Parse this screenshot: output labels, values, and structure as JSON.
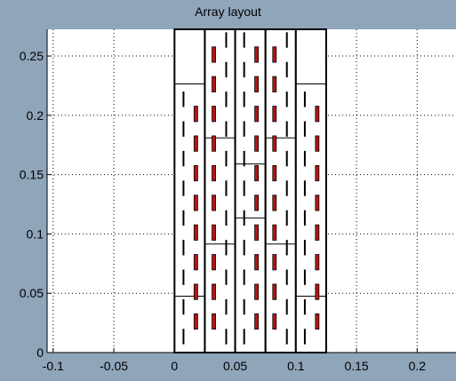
{
  "chart_data": {
    "type": "scatter",
    "title": "Array layout",
    "xlabel": "",
    "ylabel": "",
    "xlim": [
      -0.105,
      0.232
    ],
    "ylim": [
      0,
      0.2725
    ],
    "grid": true,
    "x_ticks": [
      -0.1,
      -0.05,
      0,
      0.05,
      0.1,
      0.15,
      0.2
    ],
    "x_tick_labels": [
      "-0.1",
      "-0.05",
      "0",
      "0.05",
      "0.1",
      "0.15",
      "0.2"
    ],
    "y_ticks": [
      0,
      0.05,
      0.1,
      0.15,
      0.2,
      0.25
    ],
    "y_tick_labels": [
      "0",
      "0.05",
      "0.1",
      "0.15",
      "0.2",
      "0.25"
    ],
    "columns": [
      {
        "x_start": 0,
        "x_end": 0.025,
        "dividers": [
          0.0475,
          0.2265
        ]
      },
      {
        "x_start": 0.025,
        "x_end": 0.05,
        "dividers": [
          0.0915,
          0.181
        ]
      },
      {
        "x_start": 0.05,
        "x_end": 0.075,
        "dividers": [
          0.1135,
          0.159
        ]
      },
      {
        "x_start": 0.075,
        "x_end": 0.1,
        "dividers": [
          0.0915,
          0.181
        ]
      },
      {
        "x_start": 0.1,
        "x_end": 0.125,
        "dividers": [
          0.0475,
          0.2265
        ]
      }
    ],
    "series": [
      {
        "color": "#000000",
        "elements": [
          [
            0.0074,
            0.0135
          ],
          [
            0.0074,
            0.0385
          ],
          [
            0.0074,
            0.0635
          ],
          [
            0.0074,
            0.0885
          ],
          [
            0.0074,
            0.1135
          ],
          [
            0.0074,
            0.1385
          ],
          [
            0.0074,
            0.1635
          ],
          [
            0.0074,
            0.1885
          ],
          [
            0.0074,
            0.2135
          ],
          [
            0.0426,
            0.0135
          ],
          [
            0.0426,
            0.0385
          ],
          [
            0.0426,
            0.0635
          ],
          [
            0.0426,
            0.0885
          ],
          [
            0.0426,
            0.1135
          ],
          [
            0.0426,
            0.1385
          ],
          [
            0.0426,
            0.1635
          ],
          [
            0.0426,
            0.1885
          ],
          [
            0.0426,
            0.2135
          ],
          [
            0.0426,
            0.2385
          ],
          [
            0.0426,
            0.2635
          ],
          [
            0.0574,
            0.0135
          ],
          [
            0.0574,
            0.0385
          ],
          [
            0.0574,
            0.0635
          ],
          [
            0.0574,
            0.0885
          ],
          [
            0.0574,
            0.1135
          ],
          [
            0.0574,
            0.1385
          ],
          [
            0.0574,
            0.1635
          ],
          [
            0.0574,
            0.1885
          ],
          [
            0.0574,
            0.2135
          ],
          [
            0.0574,
            0.2385
          ],
          [
            0.0574,
            0.2635
          ],
          [
            0.0926,
            0.0135
          ],
          [
            0.0926,
            0.0385
          ],
          [
            0.0926,
            0.0635
          ],
          [
            0.0926,
            0.0885
          ],
          [
            0.0926,
            0.1135
          ],
          [
            0.0926,
            0.1385
          ],
          [
            0.0926,
            0.1635
          ],
          [
            0.0926,
            0.1885
          ],
          [
            0.0926,
            0.2135
          ],
          [
            0.0926,
            0.2385
          ],
          [
            0.0926,
            0.2635
          ],
          [
            0.1074,
            0.0135
          ],
          [
            0.1074,
            0.0385
          ],
          [
            0.1074,
            0.0635
          ],
          [
            0.1074,
            0.0885
          ],
          [
            0.1074,
            0.1135
          ],
          [
            0.1074,
            0.1385
          ],
          [
            0.1074,
            0.1635
          ],
          [
            0.1074,
            0.1885
          ],
          [
            0.1074,
            0.2135
          ]
        ]
      },
      {
        "color": "#b81414",
        "elements": [
          [
            0.0176,
            0.0262
          ],
          [
            0.0176,
            0.0512
          ],
          [
            0.0176,
            0.0762
          ],
          [
            0.0176,
            0.1012
          ],
          [
            0.0176,
            0.1262
          ],
          [
            0.0176,
            0.1512
          ],
          [
            0.0176,
            0.1762
          ],
          [
            0.0176,
            0.2012
          ],
          [
            0.0324,
            0.0262
          ],
          [
            0.0324,
            0.0512
          ],
          [
            0.0324,
            0.0762
          ],
          [
            0.0324,
            0.1012
          ],
          [
            0.0324,
            0.1262
          ],
          [
            0.0324,
            0.1512
          ],
          [
            0.0324,
            0.1762
          ],
          [
            0.0324,
            0.2012
          ],
          [
            0.0324,
            0.2262
          ],
          [
            0.0324,
            0.2512
          ],
          [
            0.0676,
            0.0262
          ],
          [
            0.0676,
            0.0512
          ],
          [
            0.0676,
            0.0762
          ],
          [
            0.0676,
            0.1012
          ],
          [
            0.0676,
            0.1262
          ],
          [
            0.0676,
            0.1512
          ],
          [
            0.0676,
            0.1762
          ],
          [
            0.0676,
            0.2012
          ],
          [
            0.0676,
            0.2262
          ],
          [
            0.0676,
            0.2512
          ],
          [
            0.0824,
            0.0262
          ],
          [
            0.0824,
            0.0512
          ],
          [
            0.0824,
            0.0762
          ],
          [
            0.0824,
            0.1012
          ],
          [
            0.0824,
            0.1262
          ],
          [
            0.0824,
            0.1512
          ],
          [
            0.0824,
            0.1762
          ],
          [
            0.0824,
            0.2012
          ],
          [
            0.0824,
            0.2262
          ],
          [
            0.0824,
            0.2512
          ],
          [
            0.1176,
            0.0262
          ],
          [
            0.1176,
            0.0512
          ],
          [
            0.1176,
            0.0762
          ],
          [
            0.1176,
            0.1012
          ],
          [
            0.1176,
            0.1262
          ],
          [
            0.1176,
            0.1512
          ],
          [
            0.1176,
            0.1762
          ],
          [
            0.1176,
            0.2012
          ]
        ]
      }
    ]
  }
}
